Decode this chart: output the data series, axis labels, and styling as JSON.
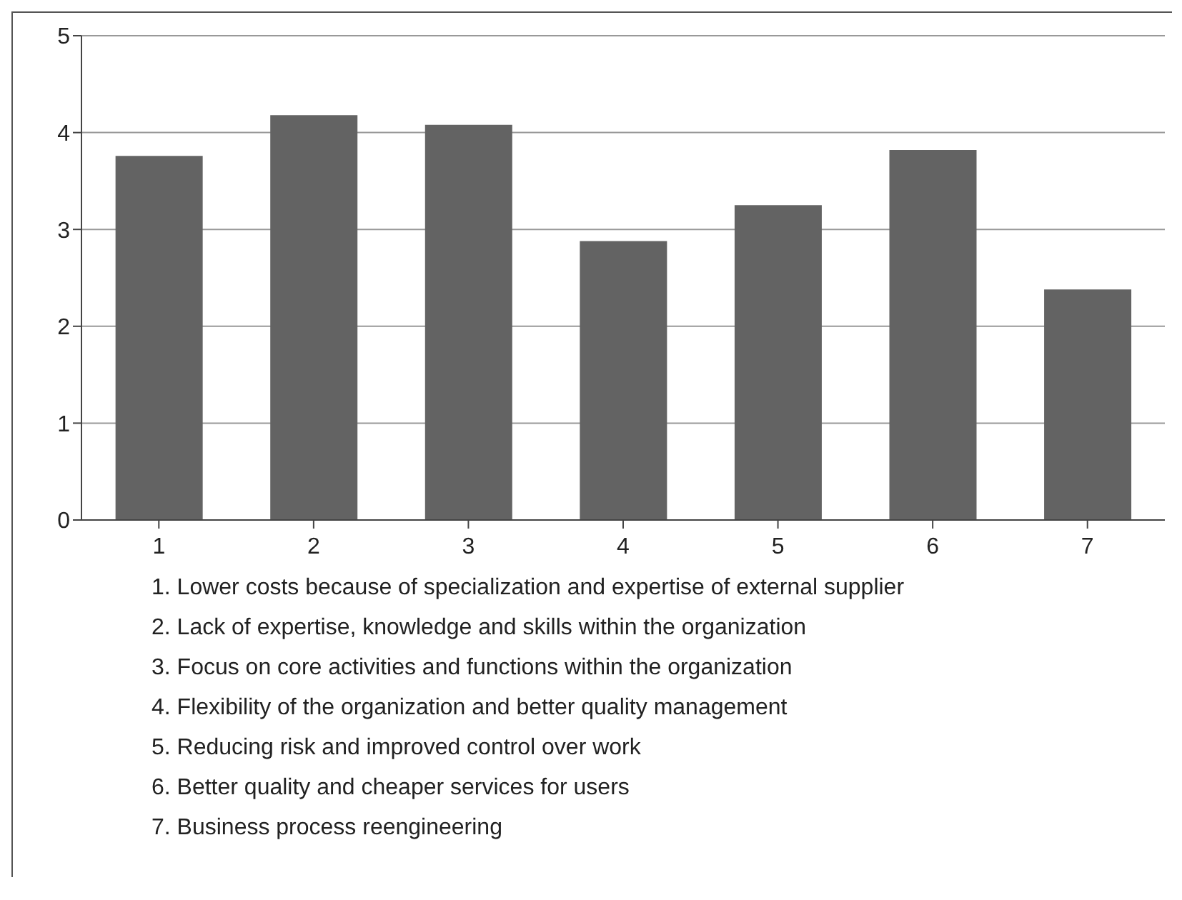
{
  "chart_data": {
    "type": "bar",
    "categories": [
      "1",
      "2",
      "3",
      "4",
      "5",
      "6",
      "7"
    ],
    "values": [
      3.76,
      4.18,
      4.08,
      2.88,
      3.25,
      3.82,
      2.38
    ],
    "color": "#636363",
    "ylim": [
      0,
      5
    ],
    "yticks": [
      0,
      1,
      2,
      3,
      4,
      5
    ],
    "grid": "y",
    "legend": false,
    "annotations": [
      "1. Lower costs because of specialization and expertise of external supplier",
      "2. Lack of expertise, knowledge and skills within the organization",
      "3. Focus on core activities and functions within the organization",
      "4. Flexibility of the organization and better quality management",
      "5. Reducing risk and improved control over work",
      "6. Better quality and cheaper services for users",
      "7. Business process reengineering"
    ]
  }
}
